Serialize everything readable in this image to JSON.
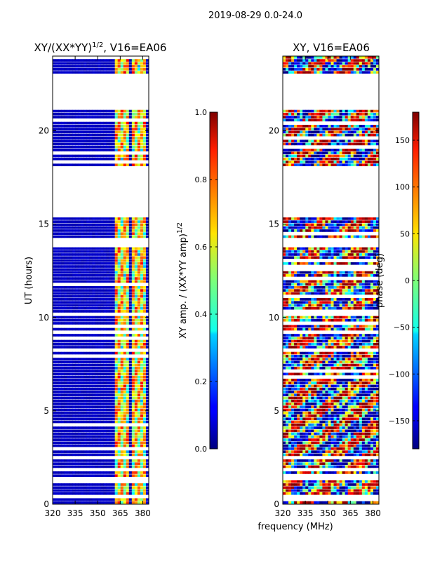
{
  "suptitle": "2019-08-29 0.0-24.0",
  "xlabel_shared": "frequency (MHz)",
  "chart_data": [
    {
      "type": "heatmap",
      "title": "XY/(XX*YY)",
      "title_superscript": "1/2",
      "title_suffix": ", V16=EA06",
      "xlabel": "",
      "ylabel": "UT (hours)",
      "xlim": [
        320,
        384
      ],
      "ylim": [
        0,
        24
      ],
      "xticks": [
        320,
        335,
        350,
        365,
        380
      ],
      "yticks": [
        0,
        5,
        10,
        15,
        20
      ],
      "colorbar": {
        "label": "XY amp. / (XX*YY amp)",
        "label_superscript": "1/2",
        "range": [
          0.0,
          1.0
        ],
        "ticks": [
          "0.0",
          "0.2",
          "0.4",
          "0.6",
          "0.8",
          "1.0"
        ],
        "colormap": "jet"
      },
      "data_gaps_hours": [
        [
          21.2,
          23.0
        ],
        [
          18.0,
          15.4
        ],
        [
          14.0,
          13.85
        ],
        [
          10.2,
          10.05
        ],
        [
          8.3,
          8.2
        ],
        [
          2.6,
          2.35
        ],
        [
          1.45,
          1.35
        ],
        [
          0.45,
          0.3
        ]
      ]
    },
    {
      "type": "heatmap",
      "title": "XY, V16=EA06",
      "xlabel": "",
      "ylabel": "",
      "xlim": [
        320,
        384
      ],
      "ylim": [
        0,
        24
      ],
      "xticks": [
        320,
        335,
        350,
        365,
        380
      ],
      "yticks": [
        0,
        5,
        10,
        15,
        20
      ],
      "colorbar": {
        "label": "phase (deg)",
        "range": [
          -180,
          180
        ],
        "ticks": [
          "−150",
          "−100",
          "−50",
          "0",
          "50",
          "100",
          "150"
        ],
        "colormap": "jet"
      },
      "data_gaps_hours": [
        [
          21.2,
          23.0
        ],
        [
          18.0,
          15.4
        ],
        [
          14.0,
          13.85
        ],
        [
          10.2,
          10.05
        ],
        [
          8.3,
          8.2
        ],
        [
          2.6,
          2.35
        ],
        [
          1.45,
          1.35
        ],
        [
          0.45,
          0.3
        ]
      ]
    }
  ]
}
